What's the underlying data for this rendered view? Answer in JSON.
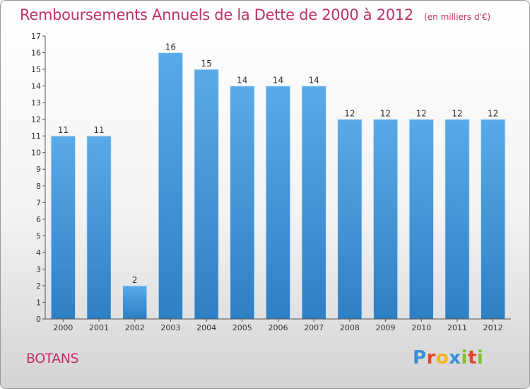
{
  "chart_data": {
    "type": "bar",
    "title": "Remboursements Annuels de la Dette de 2000 à 2012",
    "unit_note": "(en milliers d'€)",
    "categories": [
      "2000",
      "2001",
      "2002",
      "2003",
      "2004",
      "2005",
      "2006",
      "2007",
      "2008",
      "2009",
      "2010",
      "2011",
      "2012"
    ],
    "values": [
      11,
      11,
      2,
      16,
      15,
      14,
      14,
      14,
      12,
      12,
      12,
      12,
      12
    ],
    "data_labels": [
      "11",
      "11",
      "2",
      "16",
      "15",
      "14",
      "14",
      "14",
      "12",
      "12",
      "12",
      "12",
      "12"
    ],
    "yticks": [
      "0",
      "1",
      "2",
      "3",
      "4",
      "5",
      "6",
      "7",
      "8",
      "9",
      "10",
      "11",
      "12",
      "13",
      "14",
      "15",
      "16",
      "17"
    ],
    "ylim": [
      0,
      17
    ],
    "xlabel": "",
    "ylabel": "",
    "grid": false,
    "legend": "none",
    "bar_color": "#4a9be0"
  },
  "footer": {
    "commune": "BOTANS",
    "logo_letters": [
      "P",
      "r",
      "o",
      "x",
      "i",
      "t",
      "i"
    ],
    "logo_colors": [
      "#3c8fd6",
      "#e0472b",
      "#f2b61a",
      "#3c8fd6",
      "#7fbf2e",
      "#e0472b",
      "#7fbf2e"
    ]
  }
}
